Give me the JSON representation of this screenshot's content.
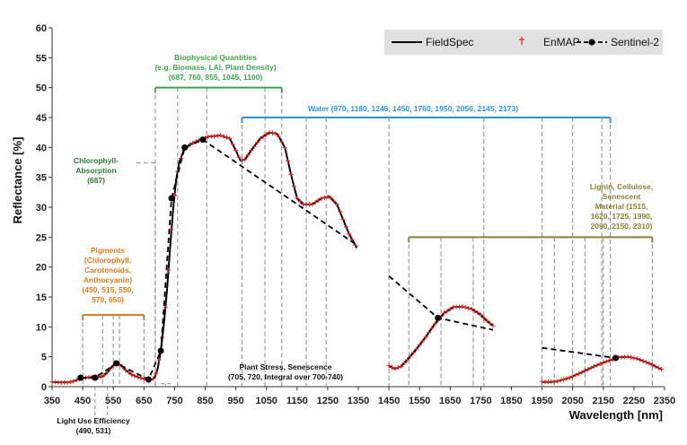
{
  "chart_data": {
    "type": "line",
    "xlabel": "Wavelength [nm]",
    "ylabel": "Reflectance [%]",
    "xlim": [
      350,
      2350
    ],
    "ylim": [
      0,
      60
    ],
    "xticks": [
      350,
      450,
      550,
      650,
      750,
      850,
      950,
      1050,
      1150,
      1250,
      1350,
      1450,
      1550,
      1650,
      1750,
      1850,
      1950,
      2050,
      2150,
      2250,
      2350
    ],
    "yticks": [
      0,
      5,
      10,
      15,
      20,
      25,
      30,
      35,
      40,
      45,
      50,
      55,
      60
    ],
    "grid": false,
    "legend_position": "top-right",
    "legend": [
      "FieldSpec",
      "EnMAP",
      "Sentinel-2"
    ],
    "series": [
      {
        "name": "FieldSpec",
        "color": "#000000",
        "segments": [
          [
            [
              350,
              0.8
            ],
            [
              380,
              0.7
            ],
            [
              400,
              0.7
            ],
            [
              420,
              0.9
            ],
            [
              440,
              1.3
            ],
            [
              460,
              1.5
            ],
            [
              480,
              1.6
            ],
            [
              500,
              1.6
            ],
            [
              515,
              1.7
            ],
            [
              530,
              2.4
            ],
            [
              545,
              3.3
            ],
            [
              555,
              3.8
            ],
            [
              565,
              3.9
            ],
            [
              575,
              3.6
            ],
            [
              590,
              2.8
            ],
            [
              610,
              2.0
            ],
            [
              630,
              1.6
            ],
            [
              650,
              1.3
            ],
            [
              665,
              1.2
            ],
            [
              675,
              1.2
            ],
            [
              685,
              1.5
            ],
            [
              695,
              3.0
            ],
            [
              705,
              6.0
            ],
            [
              715,
              10.5
            ],
            [
              725,
              16.0
            ],
            [
              735,
              23.0
            ],
            [
              745,
              29.5
            ],
            [
              755,
              34.5
            ],
            [
              765,
              37.5
            ],
            [
              780,
              39.5
            ],
            [
              800,
              40.5
            ],
            [
              830,
              41.2
            ],
            [
              860,
              41.8
            ],
            [
              900,
              42.0
            ],
            [
              930,
              41.5
            ],
            [
              950,
              39.5
            ],
            [
              965,
              37.8
            ],
            [
              980,
              38.0
            ],
            [
              1000,
              39.5
            ],
            [
              1030,
              41.5
            ],
            [
              1060,
              42.5
            ],
            [
              1085,
              42.3
            ],
            [
              1110,
              40.0
            ],
            [
              1130,
              35.5
            ],
            [
              1150,
              31.5
            ],
            [
              1170,
              30.5
            ],
            [
              1200,
              30.5
            ],
            [
              1230,
              31.5
            ],
            [
              1255,
              31.8
            ],
            [
              1280,
              30.5
            ],
            [
              1300,
              28.0
            ],
            [
              1320,
              25.5
            ],
            [
              1345,
              23.2
            ]
          ],
          [
            [
              1450,
              3.5
            ],
            [
              1460,
              3.2
            ],
            [
              1470,
              3.0
            ],
            [
              1490,
              3.4
            ],
            [
              1510,
              4.5
            ],
            [
              1540,
              6.3
            ],
            [
              1570,
              8.3
            ],
            [
              1600,
              10.5
            ],
            [
              1630,
              12.3
            ],
            [
              1660,
              13.3
            ],
            [
              1690,
              13.4
            ],
            [
              1720,
              13.0
            ],
            [
              1750,
              12.0
            ],
            [
              1770,
              11.0
            ],
            [
              1790,
              10.2
            ]
          ],
          [
            [
              1950,
              0.8
            ],
            [
              1980,
              0.8
            ],
            [
              2000,
              0.9
            ],
            [
              2040,
              1.5
            ],
            [
              2080,
              2.4
            ],
            [
              2120,
              3.4
            ],
            [
              2160,
              4.2
            ],
            [
              2200,
              4.9
            ],
            [
              2230,
              5.0
            ],
            [
              2260,
              4.7
            ],
            [
              2300,
              3.9
            ],
            [
              2340,
              2.9
            ]
          ]
        ]
      },
      {
        "name": "EnMAP",
        "color": "#e02020",
        "sampling_nm": 10,
        "note": "markers follow FieldSpec curve"
      },
      {
        "name": "Sentinel-2",
        "color": "#000000",
        "points": [
          [
            443,
            1.5
          ],
          [
            490,
            1.5
          ],
          [
            560,
            3.9
          ],
          [
            665,
            1.2
          ],
          [
            705,
            6.0
          ],
          [
            740,
            31.5
          ],
          [
            783,
            40.0
          ],
          [
            842,
            41.3
          ],
          [
            1610,
            11.5
          ],
          [
            2190,
            4.8
          ]
        ],
        "dashed_segments": [
          [
            [
              443,
              1.5
            ],
            [
              490,
              1.5
            ],
            [
              560,
              3.9
            ],
            [
              665,
              1.2
            ],
            [
              705,
              6.0
            ],
            [
              740,
              31.5
            ],
            [
              783,
              40.0
            ],
            [
              842,
              41.3
            ],
            [
              1350,
              23.5
            ]
          ],
          [
            [
              1450,
              18.5
            ],
            [
              1610,
              11.5
            ],
            [
              1790,
              9.5
            ]
          ],
          [
            [
              1950,
              6.5
            ],
            [
              2190,
              4.8
            ]
          ]
        ]
      }
    ],
    "annotations": [
      {
        "id": "bio",
        "color": "#3aa64a",
        "lines": [
          "Biophysical Quantities",
          "(e.g. Biomass, LAI, Plant Density)",
          "(687, 760, 855, 1045, 1100)"
        ],
        "bracket": [
          687,
          1100
        ],
        "bracket_y": 50,
        "drops": [
          687,
          760,
          855,
          1045,
          1100
        ]
      },
      {
        "id": "water",
        "color": "#2a96d8",
        "lines": [
          "Water (970, 1180, 1245, 1450, 1760, 1950, 2050, 2145, 2173)"
        ],
        "bracket": [
          970,
          2173
        ],
        "bracket_y": 45,
        "drops": [
          970,
          1180,
          1245,
          1450,
          1760,
          1950,
          2050,
          2145,
          2173
        ]
      },
      {
        "id": "chl",
        "color": "#2e7d32",
        "lines": [
          "Chlorophyll-",
          "Absorption",
          "(687)"
        ]
      },
      {
        "id": "lignin",
        "color": "#8a8032",
        "lines": [
          "Lignin, Cellulose,",
          "Senescent",
          "Material (1515,",
          "1620, 1725, 1990,",
          "2090, 2150, 2310)"
        ],
        "bracket": [
          1515,
          2310
        ],
        "bracket_y": 25,
        "drops": [
          1515,
          1620,
          1725,
          1990,
          2090,
          2150,
          2310
        ]
      },
      {
        "id": "pig",
        "color": "#e07b1e",
        "lines": [
          "Pigments",
          "(Chlorophyll,",
          "Carotenoids,",
          "Anthocyanin)",
          "(450, 515, 550,",
          "570, 650)"
        ],
        "bracket": [
          450,
          650
        ],
        "bracket_y": 12,
        "drops": [
          450,
          515,
          550,
          570,
          650
        ]
      },
      {
        "id": "stress",
        "color": "#111111",
        "lines": [
          "Plant Stress, Senescence",
          "(705, 720, Integral over 700-740)"
        ]
      },
      {
        "id": "lue",
        "color": "#111111",
        "lines": [
          "Light Use Efficiency",
          "(490, 531)"
        ]
      }
    ]
  }
}
